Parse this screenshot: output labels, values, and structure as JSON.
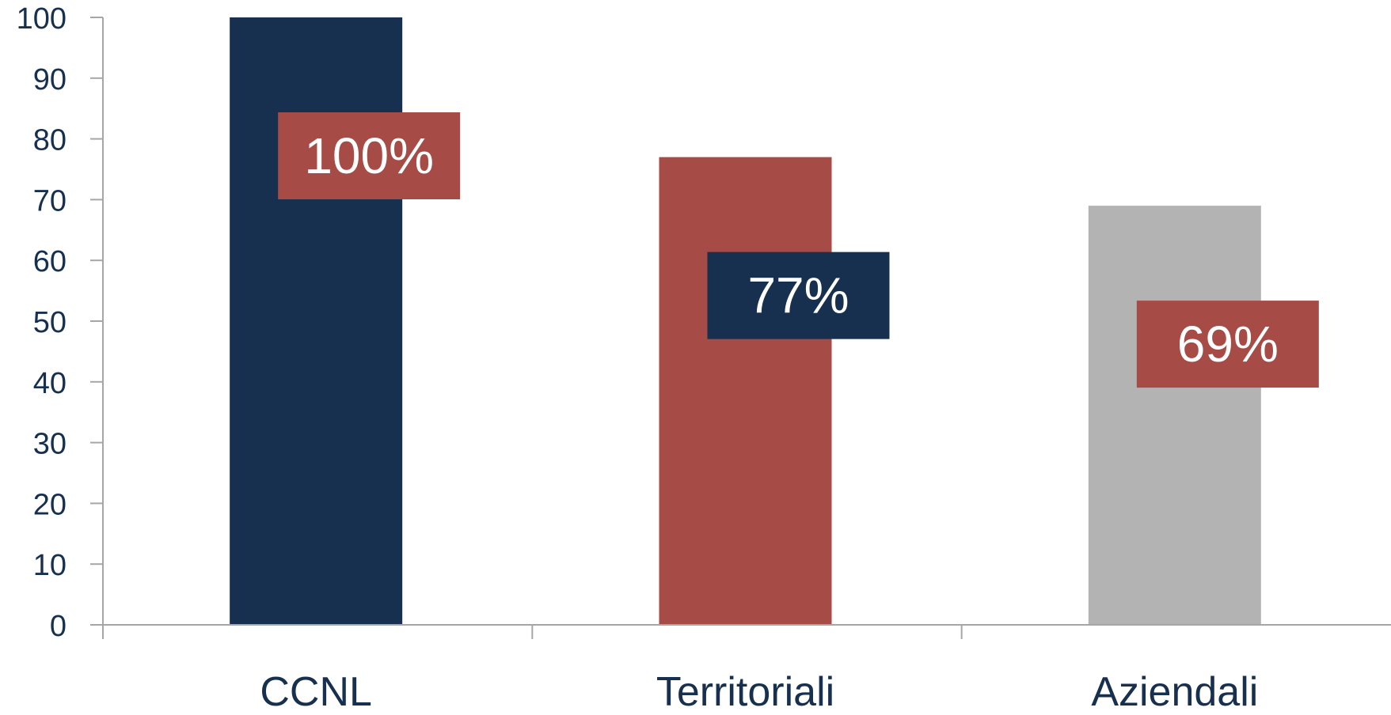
{
  "chart_data": {
    "type": "bar",
    "categories": [
      "CCNL",
      "Territoriali",
      "Aziendali"
    ],
    "values": [
      100,
      77,
      69
    ],
    "data_labels": [
      "100%",
      "77%",
      "69%"
    ],
    "bar_colors": [
      "#17304f",
      "#a64b45",
      "#b3b3b3"
    ],
    "label_box_colors": [
      "#a64b45",
      "#17304f",
      "#a64b45"
    ],
    "label_text_color": "#ffffff",
    "axis_color": "#a6a6a6",
    "tick_text_color": "#17304f",
    "ylim": [
      0,
      100
    ],
    "yticks": [
      0,
      10,
      20,
      30,
      40,
      50,
      60,
      70,
      80,
      90,
      100
    ],
    "grid": false,
    "legend": "none",
    "title": "",
    "xlabel": "",
    "ylabel": ""
  }
}
